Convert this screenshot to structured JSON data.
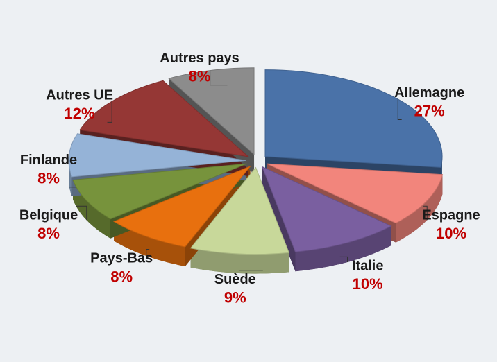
{
  "chart_data": {
    "type": "pie",
    "categories": [
      "Allemagne",
      "Espagne",
      "Italie",
      "Suède",
      "Pays-Bas",
      "Belgique",
      "Finlande",
      "Autres UE",
      "Autres pays"
    ],
    "values": [
      27,
      10,
      10,
      9,
      8,
      8,
      8,
      12,
      8
    ],
    "value_labels": [
      "27%",
      "10%",
      "10%",
      "9%",
      "8%",
      "8%",
      "8%",
      "12%",
      "8%"
    ],
    "colors": [
      "#4a72a8",
      "#f2857c",
      "#7a5fa0",
      "#c8d89a",
      "#e8700e",
      "#77933c",
      "#95b3d7",
      "#953735",
      "#8c8c8c"
    ]
  }
}
